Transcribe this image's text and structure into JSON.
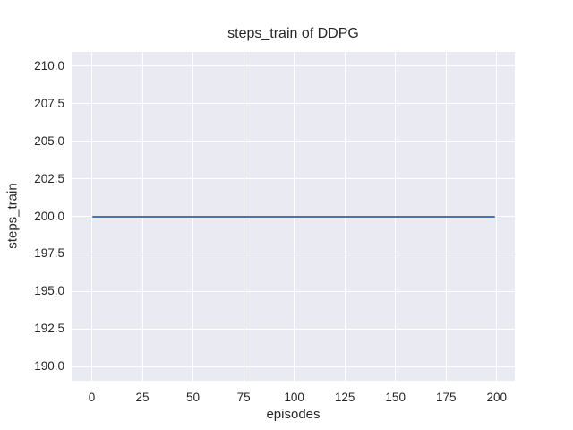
{
  "figure": {
    "title": "steps_train of DDPG",
    "xlabel": "episodes",
    "ylabel": "steps_train"
  },
  "colors": {
    "figure_background": "#ffffff",
    "plot_background": "#eaeaf2",
    "gridline": "#ffffff",
    "text": "#262626",
    "line": "#4c72b0"
  },
  "chart_data": {
    "type": "line",
    "title": "steps_train of DDPG",
    "xlabel": "episodes",
    "ylabel": "steps_train",
    "grid": true,
    "legend": "none",
    "xlim": [
      -9.95,
      208.95
    ],
    "ylim": [
      189.05,
      210.95
    ],
    "x_ticks": [
      0,
      25,
      50,
      75,
      100,
      125,
      150,
      175,
      200
    ],
    "x_tick_labels": [
      "0",
      "25",
      "50",
      "75",
      "100",
      "125",
      "150",
      "175",
      "200"
    ],
    "y_ticks": [
      190.0,
      192.5,
      195.0,
      197.5,
      200.0,
      202.5,
      205.0,
      207.5,
      210.0
    ],
    "y_tick_labels": [
      "190.0",
      "192.5",
      "195.0",
      "197.5",
      "200.0",
      "202.5",
      "205.0",
      "207.5",
      "210.0"
    ],
    "series": [
      {
        "name": "steps_train",
        "color": "#4c72b0",
        "description": "constant value 200 for every episode from 0 to 199",
        "x": [
          0,
          199
        ],
        "y": [
          200,
          200
        ]
      }
    ]
  }
}
